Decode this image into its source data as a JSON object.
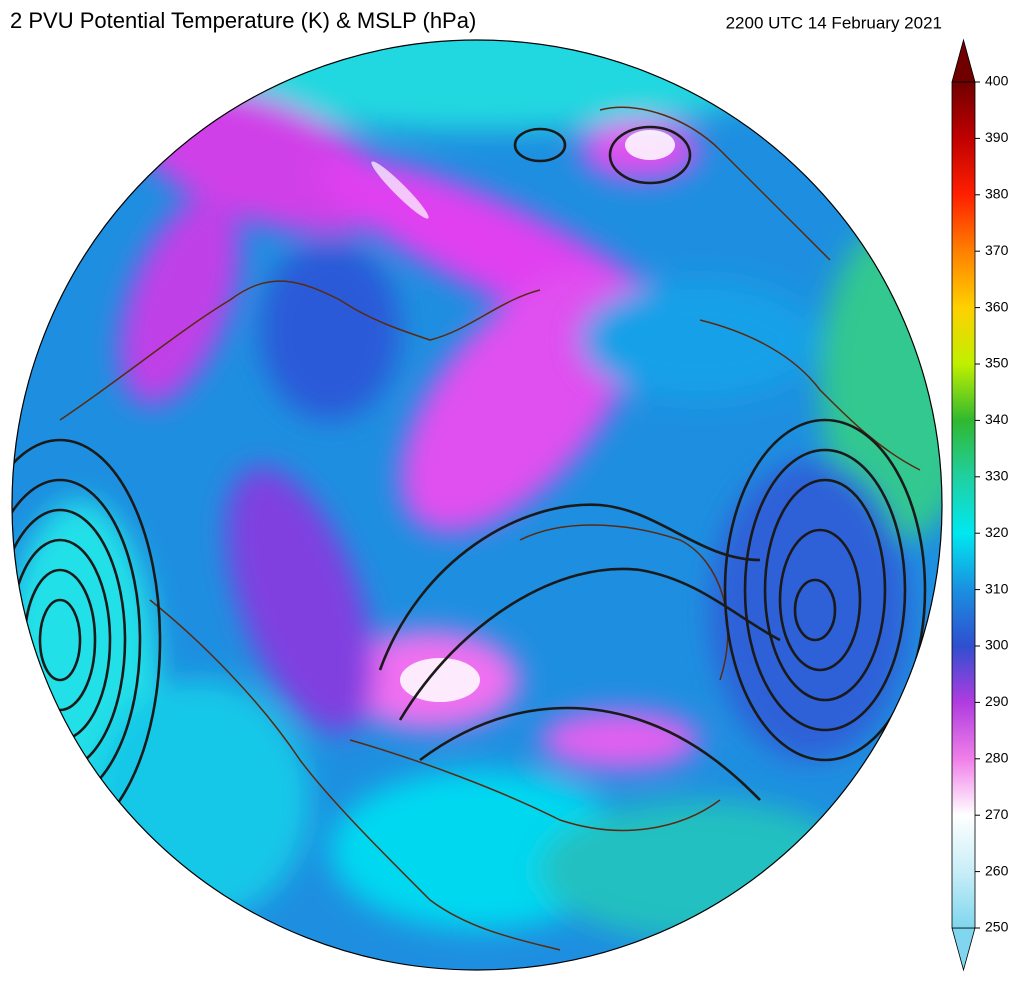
{
  "header": {
    "title": "2 PVU Potential Temperature (K) & MSLP (hPa)",
    "timestamp": "2200 UTC 14 February 2021"
  },
  "colorbar": {
    "lim": [
      250,
      400
    ],
    "ticks": [
      250,
      260,
      270,
      280,
      290,
      300,
      310,
      320,
      330,
      340,
      350,
      360,
      370,
      380,
      390,
      400
    ]
  }
}
